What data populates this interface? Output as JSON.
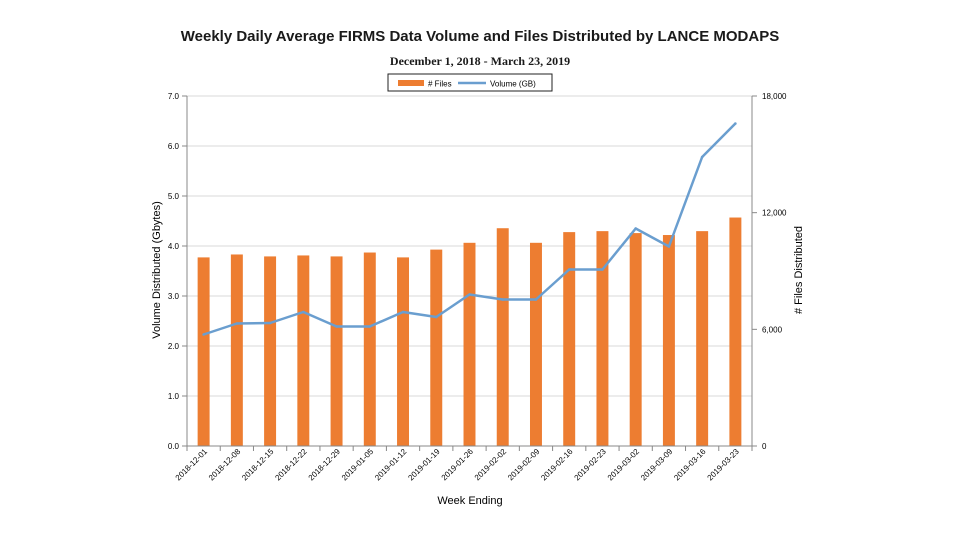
{
  "chart_data": {
    "type": "bar+line",
    "title": "Weekly Daily Average FIRMS Data Volume and Files Distributed by LANCE MODAPS",
    "subtitle": "December 1, 2018 - March 23, 2019",
    "xlabel": "Week Ending",
    "ylabel_left": "Volume Distributed (Gbytes)",
    "ylabel_right": "# Files Distributed",
    "ylim_left": [
      0,
      7
    ],
    "ylim_right": [
      0,
      18000
    ],
    "left_ticks": [
      "0.0",
      "1.0",
      "2.0",
      "3.0",
      "4.0",
      "5.0",
      "6.0",
      "7.0"
    ],
    "right_ticks": [
      "0",
      "6,000",
      "12,000",
      "18,000"
    ],
    "categories": [
      "2018-12-01",
      "2018-12-08",
      "2018-12-15",
      "2018-12-22",
      "2018-12-29",
      "2019-01-05",
      "2019-01-12",
      "2019-01-19",
      "2019-01-26",
      "2019-02-02",
      "2019-02-09",
      "2019-02-16",
      "2019-02-23",
      "2019-03-02",
      "2019-03-09",
      "2019-03-16",
      "2019-03-23"
    ],
    "series": [
      {
        "name": "# Files",
        "axis": "right",
        "kind": "bar",
        "color": "#ED7D31",
        "values": [
          9700,
          9850,
          9750,
          9800,
          9750,
          9950,
          9700,
          10100,
          10450,
          11200,
          10450,
          11000,
          11050,
          10950,
          10850,
          11050,
          11750
        ]
      },
      {
        "name": "Volume (GB)",
        "axis": "left",
        "kind": "line",
        "color": "#6A9ECF",
        "values": [
          2.23,
          2.45,
          2.46,
          2.68,
          2.39,
          2.39,
          2.68,
          2.58,
          3.03,
          2.93,
          2.93,
          3.53,
          3.53,
          4.35,
          3.99,
          5.78,
          6.45
        ]
      }
    ],
    "legend": {
      "placement": "top-center"
    }
  }
}
